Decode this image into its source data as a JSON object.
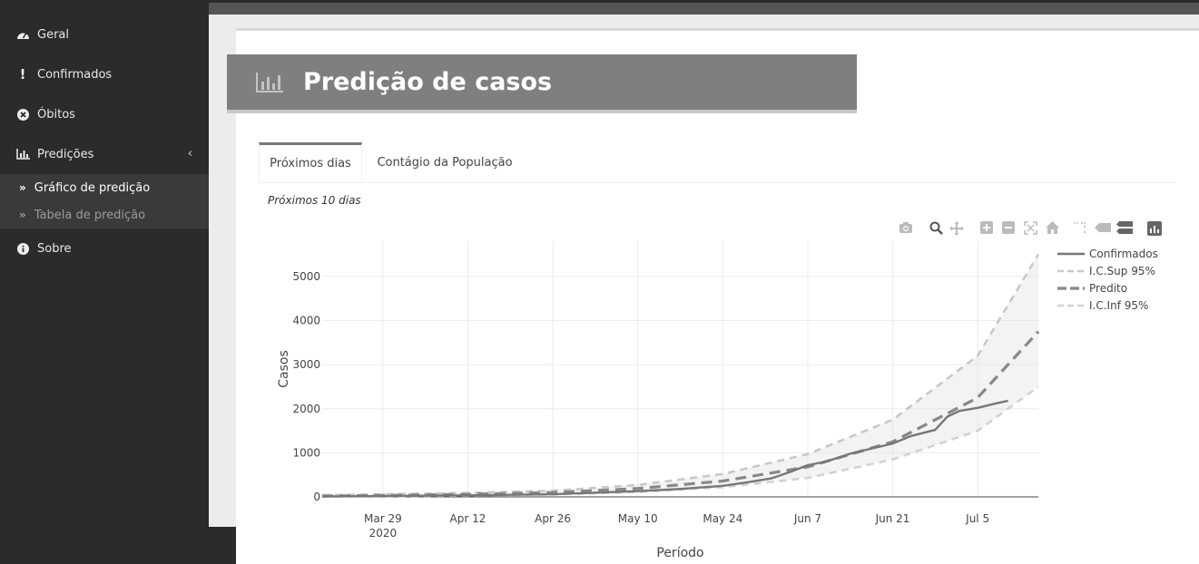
{
  "sidebar": {
    "items": [
      {
        "label": "Geral",
        "icon": "dashboard-icon"
      },
      {
        "label": "Confirmados",
        "icon": "exclamation-icon"
      },
      {
        "label": "Óbitos",
        "icon": "times-circle-icon"
      },
      {
        "label": "Predições",
        "icon": "bar-chart-icon"
      },
      {
        "label": "Sobre",
        "icon": "info-circle-icon"
      }
    ],
    "submenu": [
      {
        "label": "Gráfico de predição",
        "active": true
      },
      {
        "label": "Tabela de predição",
        "active": false
      }
    ]
  },
  "page": {
    "title": "Predição de casos"
  },
  "tabs": [
    {
      "label": "Próximos dias",
      "active": true
    },
    {
      "label": "Contágio da População",
      "active": false
    }
  ],
  "panel": {
    "subtitle": "Próximos 10 dias"
  },
  "colors": {
    "sidebar_bg": "#2b2b2b",
    "header_bg": "#7f7f7f",
    "confirmed": "#777777",
    "predicted": "#888888",
    "ci": "#cccccc"
  },
  "chart_data": {
    "type": "line",
    "xlabel": "Período",
    "ylabel": "Casos",
    "ylim": [
      0,
      5800
    ],
    "yticks": [
      0,
      1000,
      2000,
      3000,
      4000,
      5000
    ],
    "xtick_labels": [
      "Mar 29",
      "Apr 12",
      "Apr 26",
      "May 10",
      "May 24",
      "Jun 7",
      "Jun 21",
      "Jul 5"
    ],
    "xtick_year": "2020",
    "x_dates": [
      "2020-03-19",
      "2020-03-29",
      "2020-04-12",
      "2020-04-26",
      "2020-05-10",
      "2020-05-24",
      "2020-06-01",
      "2020-06-07",
      "2020-06-14",
      "2020-06-21",
      "2020-06-28",
      "2020-07-05",
      "2020-07-15"
    ],
    "legend_position": "top-right",
    "series": [
      {
        "name": "Confirmados",
        "style": "solid",
        "points": [
          [
            "2020-03-19",
            10
          ],
          [
            "2020-03-29",
            20
          ],
          [
            "2020-04-12",
            35
          ],
          [
            "2020-04-26",
            60
          ],
          [
            "2020-05-03",
            95
          ],
          [
            "2020-05-10",
            130
          ],
          [
            "2020-05-17",
            180
          ],
          [
            "2020-05-24",
            250
          ],
          [
            "2020-05-28",
            330
          ],
          [
            "2020-06-01",
            420
          ],
          [
            "2020-06-04",
            560
          ],
          [
            "2020-06-07",
            720
          ],
          [
            "2020-06-10",
            800
          ],
          [
            "2020-06-14",
            980
          ],
          [
            "2020-06-17",
            1080
          ],
          [
            "2020-06-21",
            1210
          ],
          [
            "2020-06-24",
            1380
          ],
          [
            "2020-06-28",
            1520
          ],
          [
            "2020-06-30",
            1820
          ],
          [
            "2020-07-02",
            1950
          ],
          [
            "2020-07-05",
            2020
          ],
          [
            "2020-07-08",
            2120
          ],
          [
            "2020-07-10",
            2180
          ]
        ]
      },
      {
        "name": "I.C.Sup 95%",
        "style": "dash",
        "points": [
          [
            "2020-03-19",
            40
          ],
          [
            "2020-03-29",
            60
          ],
          [
            "2020-04-12",
            90
          ],
          [
            "2020-04-26",
            140
          ],
          [
            "2020-05-10",
            270
          ],
          [
            "2020-05-24",
            520
          ],
          [
            "2020-06-07",
            970
          ],
          [
            "2020-06-21",
            1750
          ],
          [
            "2020-07-05",
            3200
          ],
          [
            "2020-07-15",
            5500
          ]
        ]
      },
      {
        "name": "Predito",
        "style": "longdash",
        "points": [
          [
            "2020-03-19",
            20
          ],
          [
            "2020-03-29",
            35
          ],
          [
            "2020-04-12",
            60
          ],
          [
            "2020-04-26",
            100
          ],
          [
            "2020-05-10",
            190
          ],
          [
            "2020-05-24",
            360
          ],
          [
            "2020-06-07",
            680
          ],
          [
            "2020-06-21",
            1250
          ],
          [
            "2020-07-05",
            2250
          ],
          [
            "2020-07-15",
            3750
          ]
        ]
      },
      {
        "name": "I.C.Inf 95%",
        "style": "dash",
        "points": [
          [
            "2020-03-19",
            5
          ],
          [
            "2020-03-29",
            12
          ],
          [
            "2020-04-12",
            30
          ],
          [
            "2020-04-26",
            55
          ],
          [
            "2020-05-10",
            110
          ],
          [
            "2020-05-24",
            220
          ],
          [
            "2020-06-07",
            430
          ],
          [
            "2020-06-21",
            850
          ],
          [
            "2020-07-05",
            1500
          ],
          [
            "2020-07-15",
            2500
          ]
        ]
      }
    ]
  }
}
